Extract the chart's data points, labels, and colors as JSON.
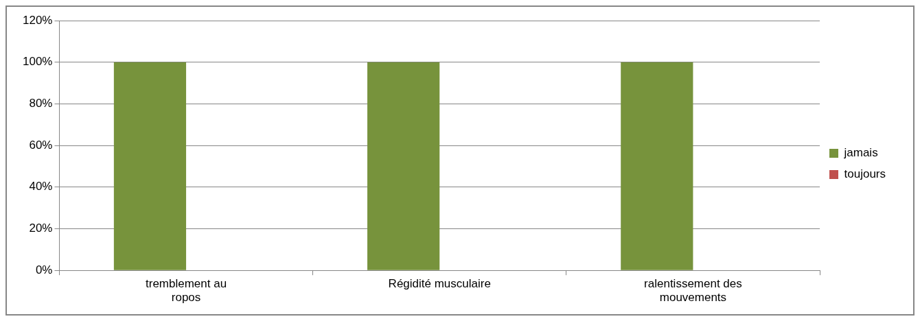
{
  "chart_data": {
    "type": "bar",
    "categories": [
      "tremblement au ropos",
      "Régidité musculaire",
      "ralentissement des mouvements"
    ],
    "series": [
      {
        "name": "jamais",
        "color": "#77933c",
        "values": [
          100,
          100,
          100
        ]
      },
      {
        "name": "toujours",
        "color": "#c0504d",
        "values": [
          0,
          0,
          0
        ]
      }
    ],
    "ylim": [
      0,
      120
    ],
    "yticks": [
      {
        "value": 0,
        "label": "0%"
      },
      {
        "value": 20,
        "label": "20%"
      },
      {
        "value": 40,
        "label": "40%"
      },
      {
        "value": 60,
        "label": "60%"
      },
      {
        "value": 80,
        "label": "80%"
      },
      {
        "value": 100,
        "label": "100%"
      },
      {
        "value": 120,
        "label": "120%"
      }
    ],
    "grid": "y",
    "legend": "right"
  }
}
